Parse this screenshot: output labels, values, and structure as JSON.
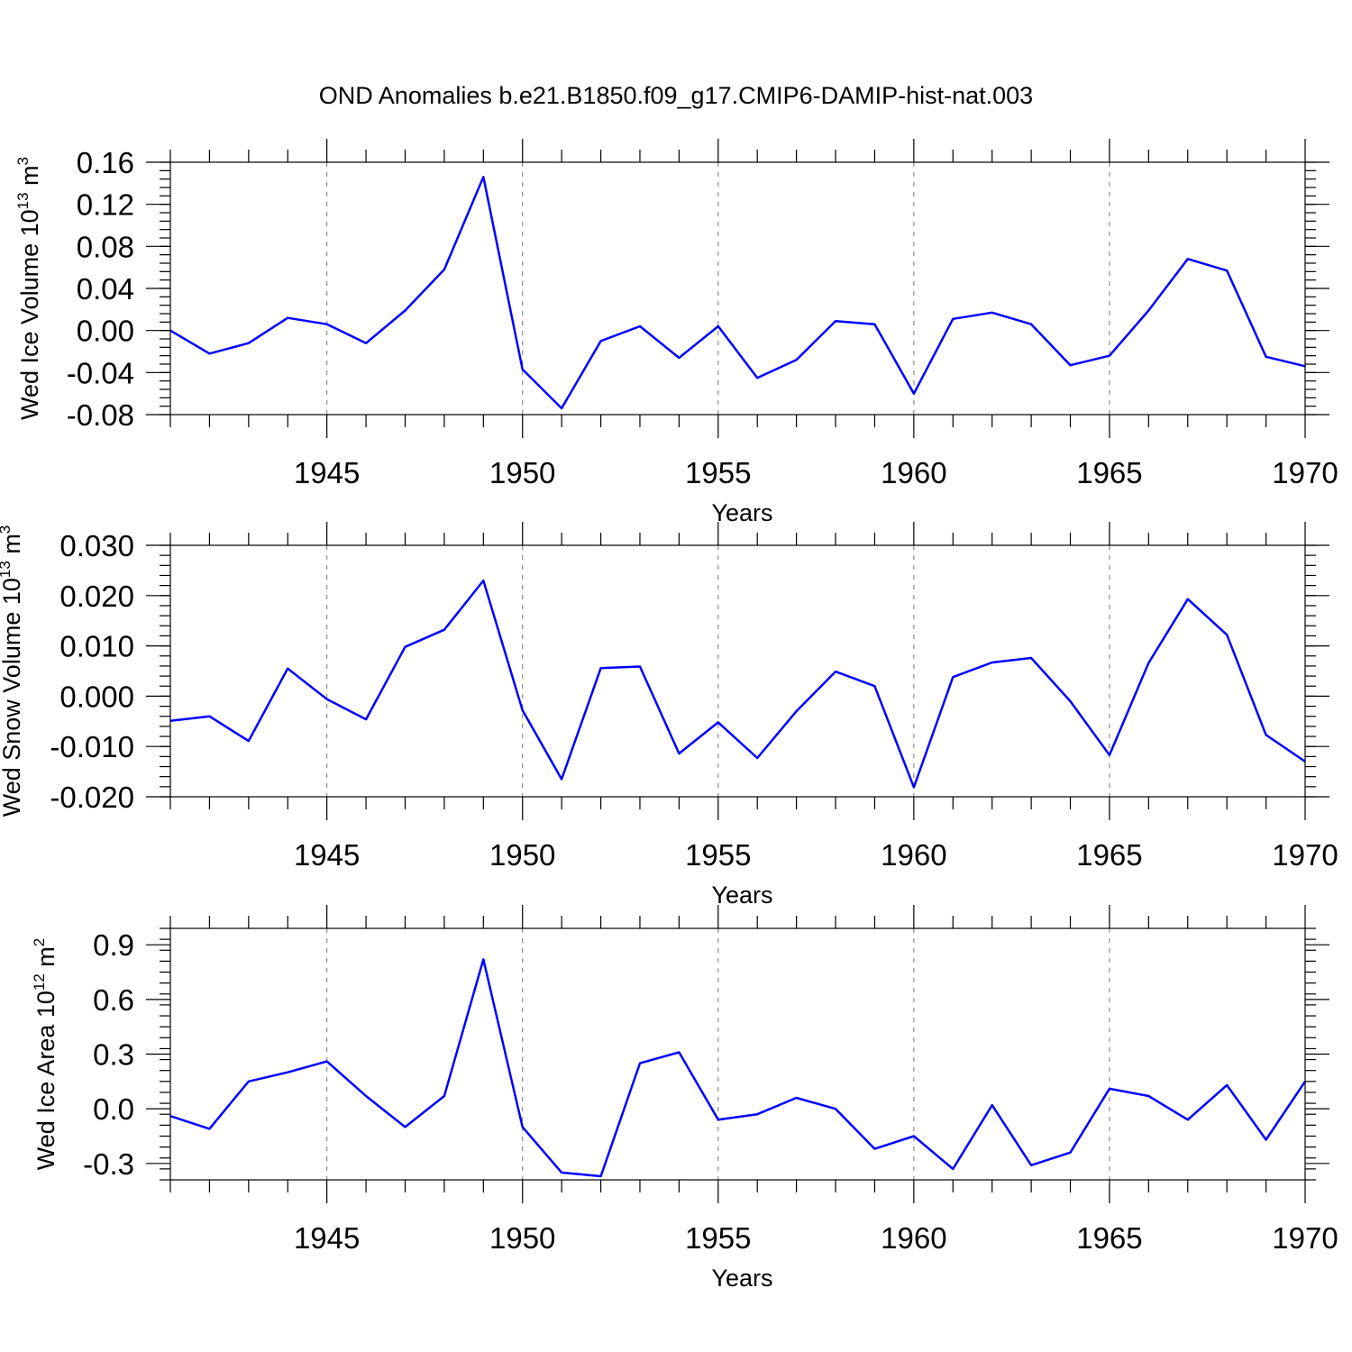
{
  "title": "OND Anomalies b.e21.B1850.f09_g17.CMIP6-DAMIP-hist-nat.003",
  "colors": {
    "line": "#0000ff",
    "grid": "#777777",
    "axis": "#000000"
  },
  "chart_data": [
    {
      "type": "line",
      "ylabel": {
        "text": "Wed Ice Volume 10",
        "sup": "13",
        "unit": " m",
        "unit_sup": "3"
      },
      "xlabel": "Years",
      "xlim": [
        1941,
        1970
      ],
      "ylim": [
        -0.08,
        0.16
      ],
      "yticks": [
        -0.08,
        -0.04,
        0.0,
        0.04,
        0.08,
        0.12,
        0.16
      ],
      "ytick_labels": [
        "-0.08",
        "-0.04",
        "0.00",
        "0.04",
        "0.08",
        "0.12",
        "0.16"
      ],
      "yminor_step": 0.008,
      "xticks": [
        1945,
        1950,
        1955,
        1960,
        1965,
        1970
      ],
      "xtick_labels": [
        "1945",
        "1950",
        "1955",
        "1960",
        "1965",
        "1970"
      ],
      "x": [
        1941,
        1942,
        1943,
        1944,
        1945,
        1946,
        1947,
        1948,
        1949,
        1950,
        1951,
        1952,
        1953,
        1954,
        1955,
        1956,
        1957,
        1958,
        1959,
        1960,
        1961,
        1962,
        1963,
        1964,
        1965,
        1966,
        1967,
        1968,
        1969,
        1970
      ],
      "series": [
        {
          "name": "Wed Ice Volume",
          "values": [
            0.0,
            -0.022,
            -0.012,
            0.012,
            0.006,
            -0.012,
            0.019,
            0.058,
            0.146,
            -0.037,
            -0.074,
            -0.01,
            0.004,
            -0.026,
            0.004,
            -0.045,
            -0.028,
            0.009,
            0.006,
            -0.06,
            0.011,
            0.017,
            0.006,
            -0.033,
            -0.024,
            0.019,
            0.068,
            0.057,
            -0.025,
            -0.034
          ]
        }
      ]
    },
    {
      "type": "line",
      "ylabel": {
        "text": "Wed Snow Volume 10",
        "sup": "13",
        "unit": " m",
        "unit_sup": "3"
      },
      "xlabel": "Years",
      "xlim": [
        1941,
        1970
      ],
      "ylim": [
        -0.02,
        0.03
      ],
      "yticks": [
        -0.02,
        -0.01,
        0.0,
        0.01,
        0.02,
        0.03
      ],
      "ytick_labels": [
        "-0.020",
        "-0.010",
        "0.000",
        "0.010",
        "0.020",
        "0.030"
      ],
      "yminor_step": 0.002,
      "xticks": [
        1945,
        1950,
        1955,
        1960,
        1965,
        1970
      ],
      "xtick_labels": [
        "1945",
        "1950",
        "1955",
        "1960",
        "1965",
        "1970"
      ],
      "x": [
        1941,
        1942,
        1943,
        1944,
        1945,
        1946,
        1947,
        1948,
        1949,
        1950,
        1951,
        1952,
        1953,
        1954,
        1955,
        1956,
        1957,
        1958,
        1959,
        1960,
        1961,
        1962,
        1963,
        1964,
        1965,
        1966,
        1967,
        1968,
        1969,
        1970
      ],
      "series": [
        {
          "name": "Wed Snow Volume",
          "values": [
            -0.0049,
            -0.004,
            -0.0089,
            0.0055,
            -0.0006,
            -0.0046,
            0.0098,
            0.0132,
            0.023,
            -0.0028,
            -0.0165,
            0.0056,
            0.0059,
            -0.0114,
            -0.0052,
            -0.0123,
            -0.003,
            0.0049,
            0.002,
            -0.0181,
            0.0038,
            0.0067,
            0.0076,
            -0.001,
            -0.0117,
            0.0066,
            0.0193,
            0.0122,
            -0.0077,
            -0.013
          ]
        }
      ]
    },
    {
      "type": "line",
      "ylabel": {
        "text": "Wed Ice Area 10",
        "sup": "12",
        "unit": " m",
        "unit_sup": "2"
      },
      "xlabel": "Years",
      "xlim": [
        1941,
        1970
      ],
      "ylim": [
        -0.39,
        0.99
      ],
      "yticks": [
        -0.3,
        0.0,
        0.3,
        0.6,
        0.9
      ],
      "ytick_labels": [
        "-0.3",
        "0.0",
        "0.3",
        "0.6",
        "0.9"
      ],
      "yminor_step": 0.06,
      "xticks": [
        1945,
        1950,
        1955,
        1960,
        1965,
        1970
      ],
      "xtick_labels": [
        "1945",
        "1950",
        "1955",
        "1960",
        "1965",
        "1970"
      ],
      "x": [
        1941,
        1942,
        1943,
        1944,
        1945,
        1946,
        1947,
        1948,
        1949,
        1950,
        1951,
        1952,
        1953,
        1954,
        1955,
        1956,
        1957,
        1958,
        1959,
        1960,
        1961,
        1962,
        1963,
        1964,
        1965,
        1966,
        1967,
        1968,
        1969,
        1970
      ],
      "series": [
        {
          "name": "Wed Ice Area",
          "values": [
            -0.04,
            -0.11,
            0.15,
            0.2,
            0.26,
            0.07,
            -0.1,
            0.07,
            0.82,
            -0.1,
            -0.35,
            -0.37,
            0.25,
            0.31,
            -0.06,
            -0.03,
            0.06,
            0.0,
            -0.22,
            -0.15,
            -0.33,
            0.02,
            -0.31,
            -0.24,
            0.11,
            0.07,
            -0.06,
            0.13,
            -0.17,
            0.15
          ]
        }
      ]
    }
  ]
}
